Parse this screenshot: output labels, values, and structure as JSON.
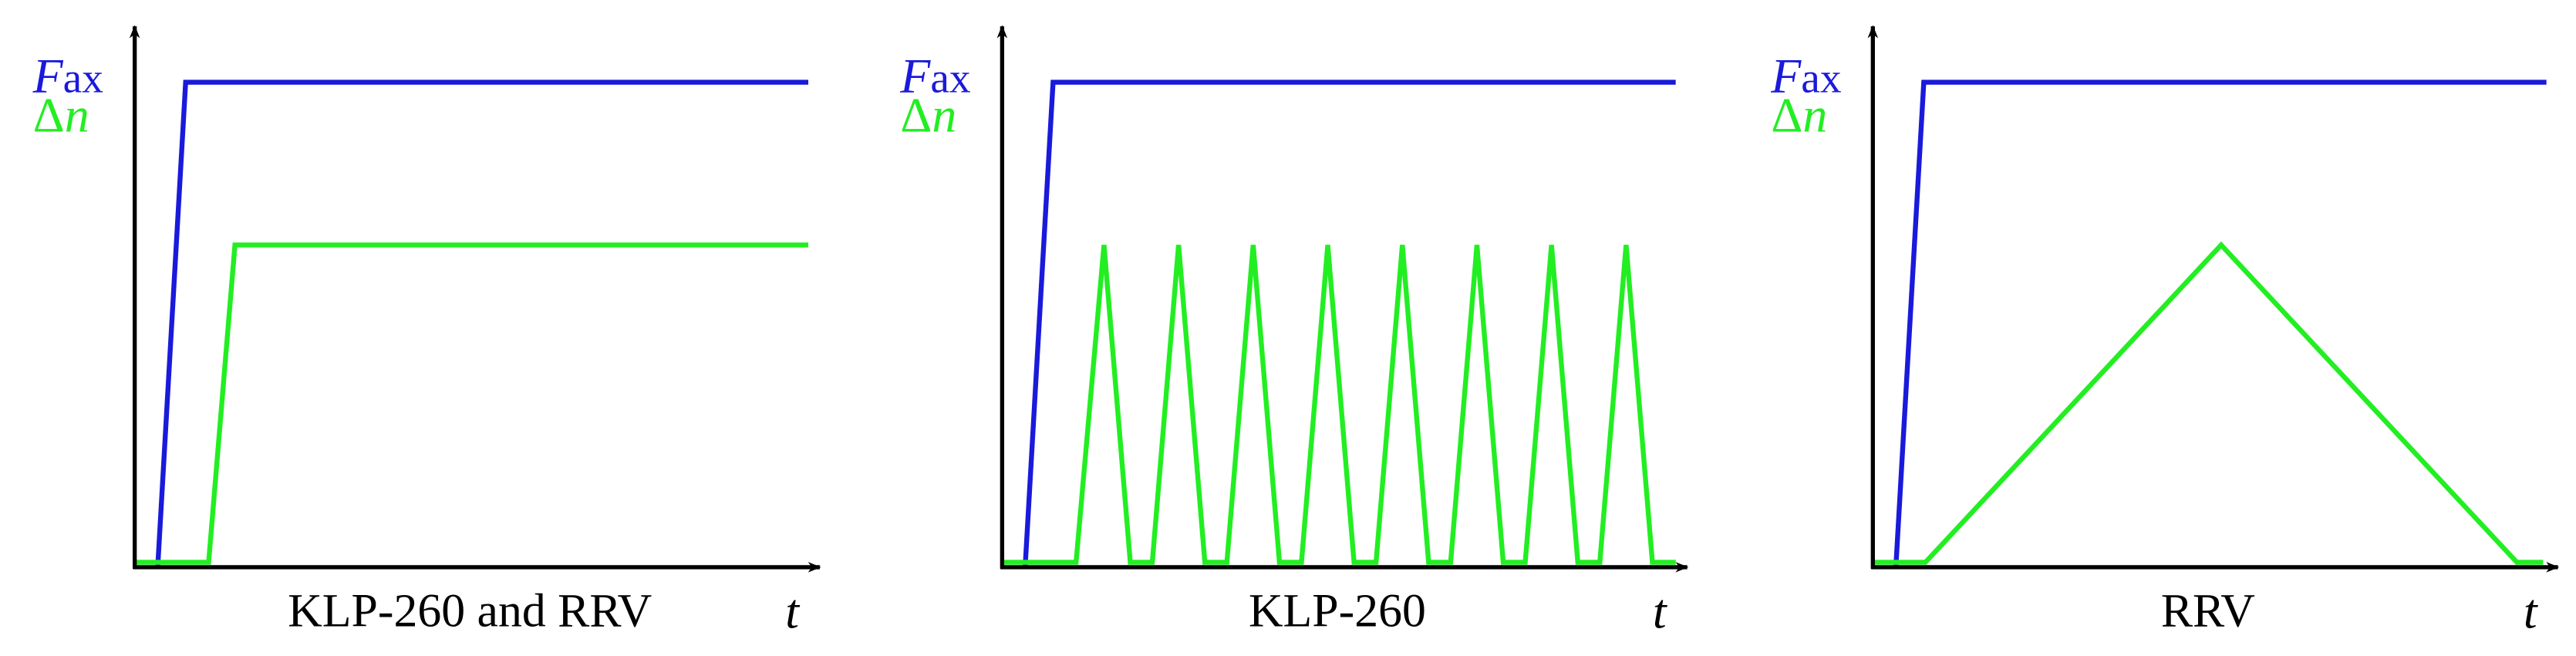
{
  "panels": [
    {
      "force_symbol": "F",
      "force_subscript": "ax",
      "delta_symbol": "Δ",
      "delta_variable": "n",
      "time_label": "t",
      "caption": "KLP-260 and RRV"
    },
    {
      "force_symbol": "F",
      "force_subscript": "ax",
      "delta_symbol": "Δ",
      "delta_variable": "n",
      "time_label": "t",
      "caption": "KLP-260"
    },
    {
      "force_symbol": "F",
      "force_subscript": "ax",
      "delta_symbol": "Δ",
      "delta_variable": "n",
      "time_label": "t",
      "caption": "RRV"
    }
  ]
}
